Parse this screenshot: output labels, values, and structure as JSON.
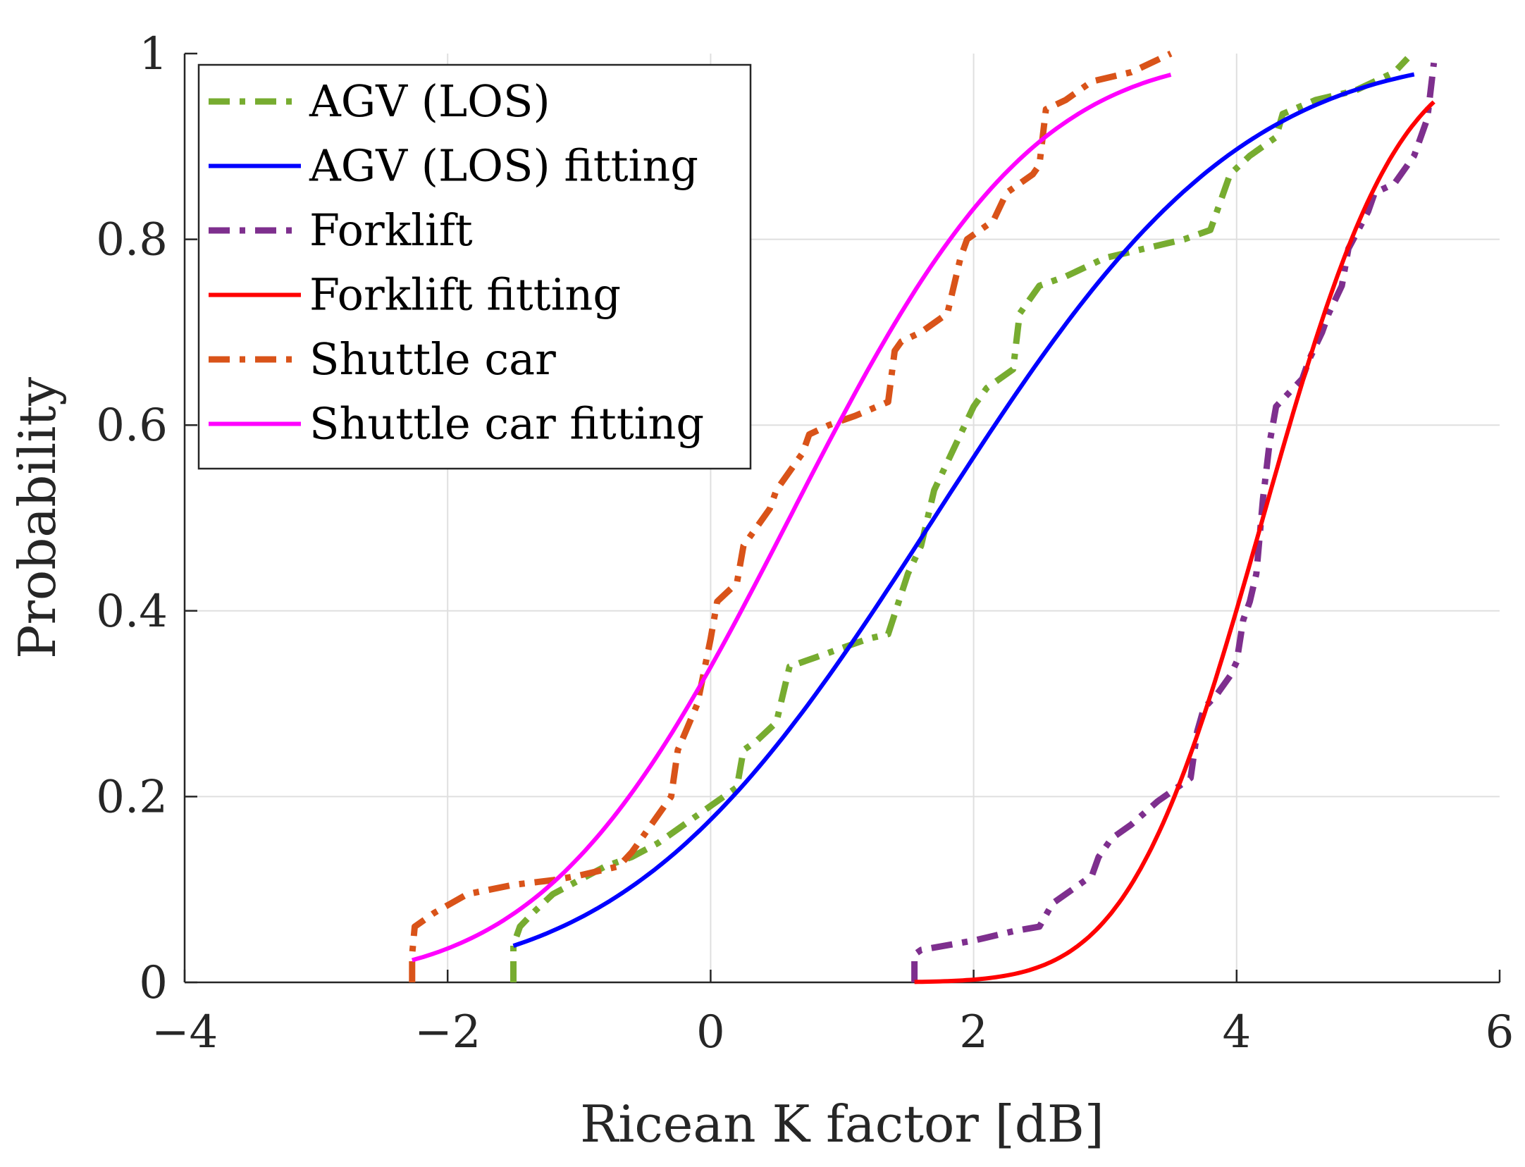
{
  "chart_data": {
    "type": "line",
    "title": "",
    "xlabel": "Ricean K factor [dB]",
    "ylabel": "Probability",
    "xlim": [
      -4,
      6
    ],
    "ylim": [
      0,
      1
    ],
    "grid": true,
    "legend_position": "top-left",
    "xticks": [
      -4,
      -2,
      0,
      2,
      4,
      6
    ],
    "xtick_labels": [
      "−4",
      "−2",
      "0",
      "2",
      "4",
      "6"
    ],
    "yticks": [
      0,
      0.2,
      0.4,
      0.6,
      0.8,
      1
    ],
    "ytick_labels": [
      "0",
      "0.2",
      "0.4",
      "0.6",
      "0.8",
      "1"
    ],
    "series": [
      {
        "name": "AGV (LOS)",
        "color": "#77AC30",
        "style": "dashdot",
        "x": [
          -1.5,
          -1.5,
          -1.45,
          -1.35,
          -1.2,
          -1.0,
          -0.8,
          -0.6,
          -0.4,
          -0.2,
          0.0,
          0.2,
          0.25,
          0.35,
          0.5,
          0.55,
          0.6,
          0.8,
          1.0,
          1.2,
          1.35,
          1.5,
          1.6,
          1.7,
          1.8,
          2.0,
          2.1,
          2.3,
          2.35,
          2.5,
          2.7,
          3.0,
          3.3,
          3.6,
          3.8,
          3.95,
          4.1,
          4.3,
          4.35,
          4.6,
          4.9,
          5.2,
          5.3
        ],
        "y": [
          0.0,
          0.04,
          0.06,
          0.075,
          0.095,
          0.11,
          0.125,
          0.135,
          0.15,
          0.17,
          0.19,
          0.21,
          0.25,
          0.26,
          0.28,
          0.31,
          0.34,
          0.35,
          0.36,
          0.37,
          0.375,
          0.44,
          0.47,
          0.53,
          0.56,
          0.62,
          0.64,
          0.66,
          0.72,
          0.75,
          0.76,
          0.78,
          0.79,
          0.8,
          0.81,
          0.87,
          0.89,
          0.91,
          0.935,
          0.95,
          0.96,
          0.98,
          0.995
        ]
      },
      {
        "name": "AGV (LOS) fitting",
        "color": "#0000FF",
        "style": "solid",
        "fit": "normal_cdf",
        "mu": 1.7,
        "sigma": 1.82,
        "x_range": [
          -1.5,
          5.35
        ]
      },
      {
        "name": "Forklift",
        "color": "#7E2F8E",
        "style": "dashdot",
        "x": [
          1.55,
          1.55,
          1.6,
          1.8,
          2.0,
          2.3,
          2.5,
          2.6,
          2.75,
          2.9,
          2.95,
          3.05,
          3.2,
          3.4,
          3.65,
          3.7,
          3.75,
          3.85,
          3.95,
          4.0,
          4.05,
          4.1,
          4.15,
          4.2,
          4.25,
          4.3,
          4.5,
          4.55,
          4.65,
          4.7,
          4.8,
          4.85,
          5.0,
          5.05,
          5.2,
          5.35,
          5.45,
          5.5
        ],
        "y": [
          0.0,
          0.03,
          0.035,
          0.04,
          0.045,
          0.055,
          0.06,
          0.085,
          0.1,
          0.115,
          0.135,
          0.155,
          0.17,
          0.195,
          0.22,
          0.27,
          0.295,
          0.31,
          0.33,
          0.345,
          0.39,
          0.41,
          0.44,
          0.52,
          0.58,
          0.62,
          0.65,
          0.67,
          0.7,
          0.72,
          0.75,
          0.79,
          0.83,
          0.85,
          0.86,
          0.89,
          0.93,
          0.99
        ]
      },
      {
        "name": "Forklift fitting",
        "color": "#FF0000",
        "style": "solid",
        "fit": "normal_cdf",
        "mu": 4.2,
        "sigma": 0.8,
        "x_range": [
          1.55,
          5.5
        ]
      },
      {
        "name": "Shuttle car",
        "color": "#D95319",
        "style": "dashdot",
        "x": [
          -2.27,
          -2.27,
          -2.25,
          -2.1,
          -1.85,
          -1.5,
          -1.2,
          -1.0,
          -0.7,
          -0.6,
          -0.55,
          -0.45,
          -0.3,
          -0.25,
          -0.1,
          0.0,
          0.05,
          0.2,
          0.25,
          0.35,
          0.45,
          0.5,
          0.6,
          0.7,
          0.75,
          0.9,
          1.1,
          1.35,
          1.4,
          1.45,
          1.6,
          1.8,
          1.9,
          1.95,
          2.15,
          2.25,
          2.45,
          2.5,
          2.55,
          2.7,
          2.9,
          3.2,
          3.5
        ],
        "y": [
          0.0,
          0.03,
          0.06,
          0.075,
          0.095,
          0.105,
          0.11,
          0.115,
          0.125,
          0.14,
          0.15,
          0.17,
          0.2,
          0.25,
          0.3,
          0.37,
          0.41,
          0.43,
          0.47,
          0.49,
          0.51,
          0.53,
          0.55,
          0.57,
          0.59,
          0.6,
          0.61,
          0.625,
          0.68,
          0.69,
          0.7,
          0.72,
          0.78,
          0.8,
          0.82,
          0.85,
          0.87,
          0.88,
          0.94,
          0.95,
          0.97,
          0.98,
          1.0
        ]
      },
      {
        "name": "Shuttle car fitting",
        "color": "#FF00FF",
        "style": "solid",
        "fit": "normal_cdf",
        "mu": 0.6,
        "sigma": 1.45,
        "x_range": [
          -2.27,
          3.5
        ]
      }
    ]
  }
}
